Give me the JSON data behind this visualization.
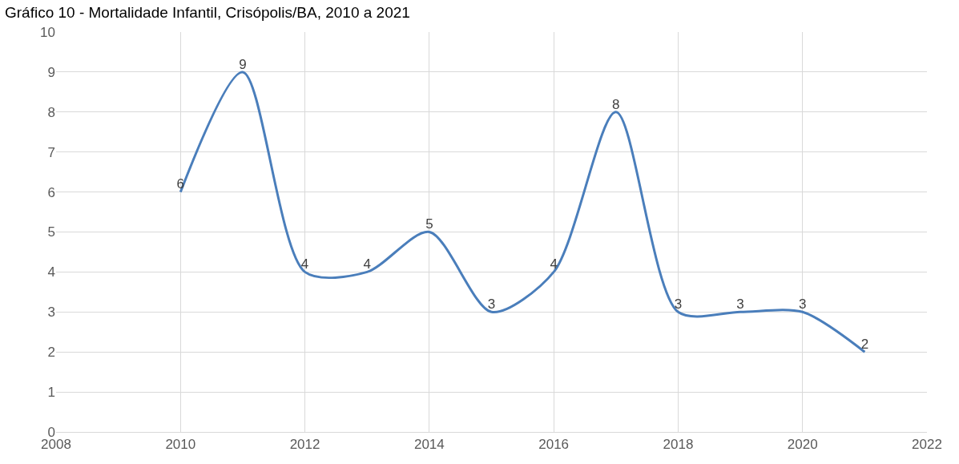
{
  "chart_data": {
    "type": "line",
    "title": "Gráfico 10 - Mortalidade Infantil, Crisópolis/BA, 2010 a 2021",
    "x": [
      2010,
      2011,
      2012,
      2013,
      2014,
      2015,
      2016,
      2017,
      2018,
      2019,
      2020,
      2021
    ],
    "series": [
      {
        "color": "#4a7ebb",
        "values": [
          6,
          9,
          4,
          4,
          5,
          3,
          4,
          8,
          3,
          3,
          3,
          2
        ]
      }
    ],
    "xlim": [
      2008,
      2022
    ],
    "xticks": [
      2008,
      2010,
      2012,
      2014,
      2016,
      2018,
      2020,
      2022
    ],
    "ylim": [
      0,
      10
    ],
    "yticks": [
      0,
      1,
      2,
      3,
      4,
      5,
      6,
      7,
      8,
      9,
      10
    ],
    "grid": true,
    "marker": "none",
    "line_style": "solid",
    "data_labels": true
  }
}
